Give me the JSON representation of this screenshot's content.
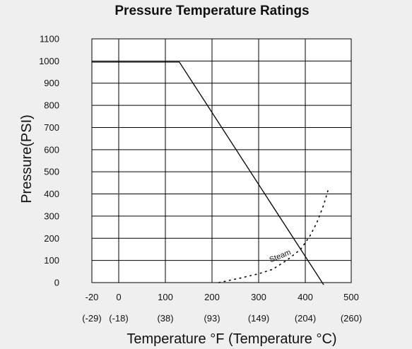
{
  "chart_data": {
    "type": "line",
    "title": "Pressure Temperature Ratings",
    "xlabel": "Temperature °F (Temperature °C)",
    "ylabel": "Pressure(PSI)",
    "x_ticks_f": [
      "-20",
      "0",
      "100",
      "200",
      "300",
      "400",
      "500"
    ],
    "x_ticks_c": [
      "(-29)",
      "(-18)",
      "(38)",
      "(93)",
      "(149)",
      "(204)",
      "(260)"
    ],
    "y_ticks": [
      "0",
      "100",
      "200",
      "300",
      "400",
      "500",
      "600",
      "700",
      "800",
      "900",
      "1000",
      "1100"
    ],
    "xlim": [
      -20,
      500
    ],
    "ylim": [
      0,
      1100
    ],
    "grid": true,
    "series": [
      {
        "style": "solid",
        "x": [
          -20,
          130,
          440
        ],
        "y": [
          995,
          995,
          -10
        ]
      },
      {
        "name": "Steam",
        "style": "dotted",
        "x": [
          215,
          260,
          300,
          330,
          360,
          390,
          410,
          425,
          440,
          450
        ],
        "y": [
          0,
          20,
          40,
          60,
          100,
          150,
          210,
          270,
          350,
          420
        ]
      }
    ]
  }
}
